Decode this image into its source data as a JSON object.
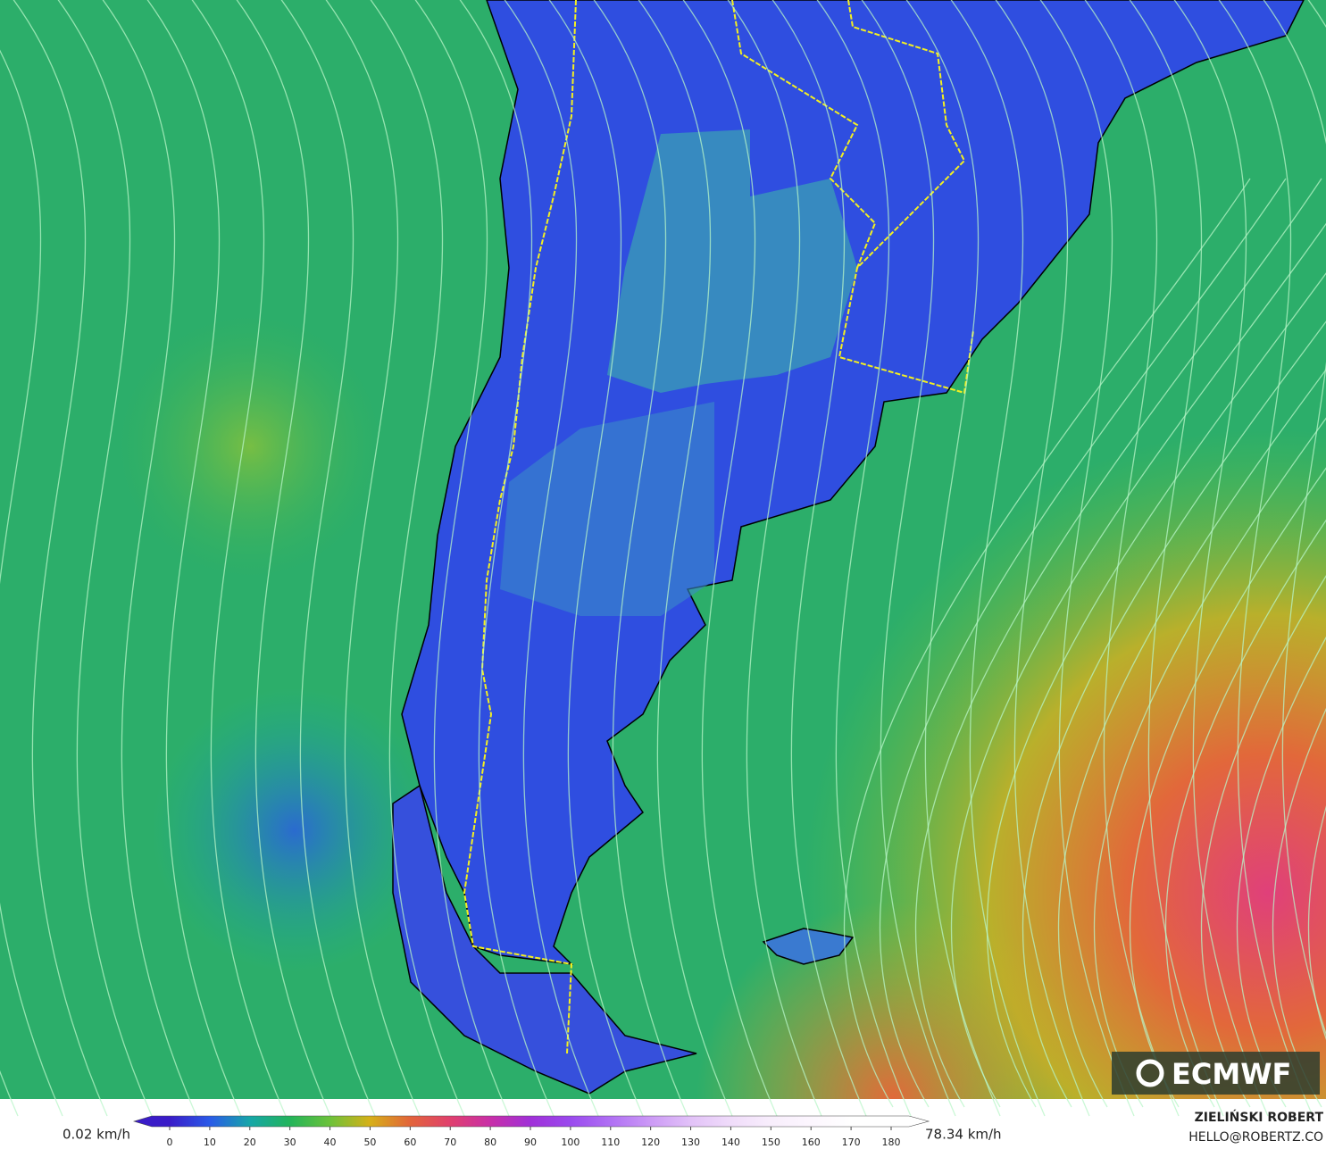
{
  "map": {
    "logo": "ECMWF"
  },
  "colorbar": {
    "min_label": "0.02 km/h",
    "max_label": "78.34 km/h",
    "lim": [
      0,
      180
    ],
    "ticks": [
      0,
      10,
      20,
      30,
      40,
      50,
      60,
      70,
      80,
      90,
      100,
      110,
      120,
      130,
      140,
      150,
      160,
      170,
      180
    ],
    "colors": [
      "#3a1cc8",
      "#2a5ae8",
      "#16a6a8",
      "#22b45a",
      "#6cc23a",
      "#d6b018",
      "#e2643a",
      "#e0406e",
      "#c82fa8",
      "#a030d8",
      "#9a4aee",
      "#b070f4",
      "#cc9af6",
      "#e2c2f8",
      "#f0dcfa",
      "#f8eefc",
      "#fcf6fe",
      "#ffffff",
      "#ffffff"
    ]
  },
  "credits": {
    "author": "ZIELIŃSKI ROBERT",
    "email": "HELLO@ROBERTZ.CO"
  }
}
